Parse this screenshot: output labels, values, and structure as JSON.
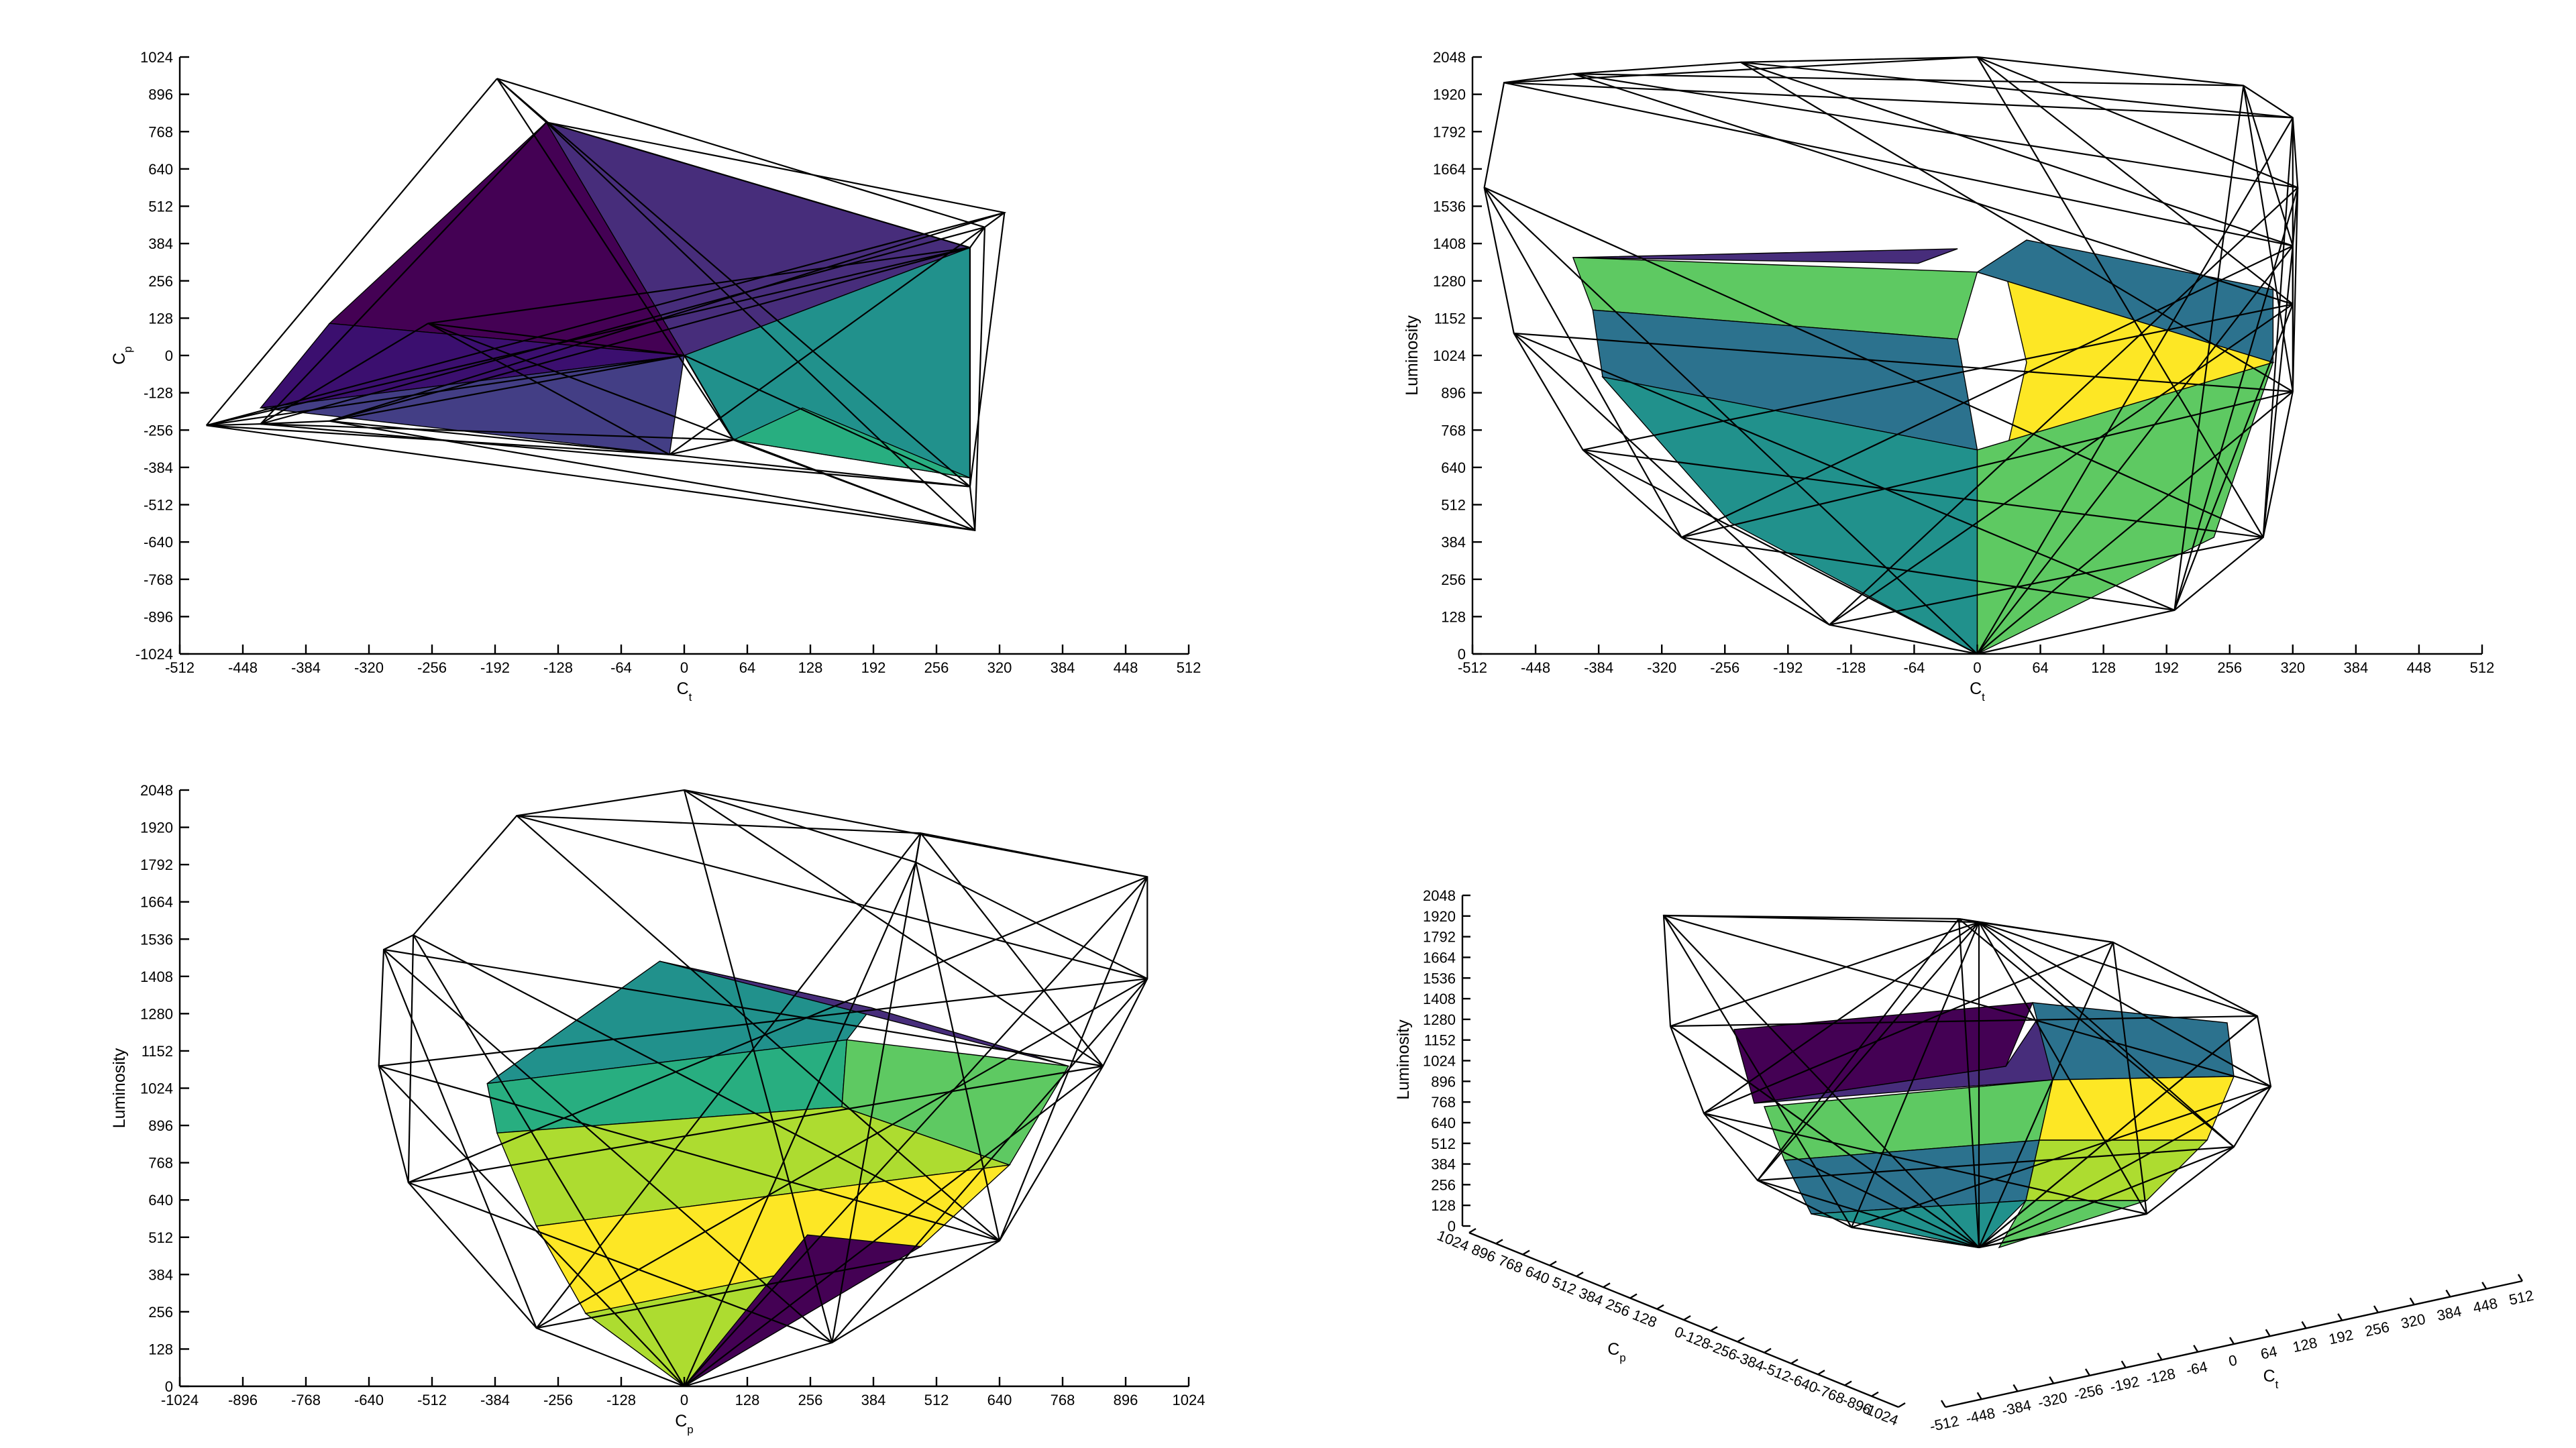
{
  "chart_data": [
    {
      "type": "3d-surface",
      "view": "top (Ct vs Cp)",
      "xlabel": "C",
      "xlabel_sub": "t",
      "ylabel": "C",
      "ylabel_sub": "p",
      "xlim": [
        -512,
        512
      ],
      "ylim": [
        -1024,
        1024
      ],
      "x_ticks": [
        -512,
        -448,
        -384,
        -320,
        -256,
        -192,
        -128,
        -64,
        0,
        64,
        128,
        192,
        256,
        320,
        384,
        448,
        512
      ],
      "y_ticks": [
        -1024,
        -896,
        -768,
        -640,
        -512,
        -384,
        -256,
        -128,
        0,
        128,
        256,
        384,
        512,
        640,
        768,
        896,
        1024
      ],
      "grid": false,
      "colormap": [
        "#440154",
        "#472d7b",
        "#3b528b",
        "#2c728e",
        "#21918c",
        "#28ae80",
        "#5ec962",
        "#addc30",
        "#fde725"
      ],
      "wireframe_vertices": [
        [
          -190,
          950
        ],
        [
          -140,
          800
        ],
        [
          325,
          490
        ],
        [
          305,
          440
        ],
        [
          290,
          370
        ],
        [
          290,
          -450
        ],
        [
          295,
          -600
        ],
        [
          -485,
          -240
        ],
        [
          -430,
          -235
        ],
        [
          -360,
          -225
        ],
        [
          -15,
          -340
        ],
        [
          -260,
          110
        ],
        [
          0,
          0
        ],
        [
          50,
          -290
        ]
      ],
      "facets": [
        {
          "color": "#440154",
          "points": [
            [
              -140,
              800
            ],
            [
              -360,
              110
            ],
            [
              0,
              0
            ]
          ]
        },
        {
          "color": "#3b0f6f",
          "points": [
            [
              -360,
              110
            ],
            [
              -430,
              -180
            ],
            [
              0,
              0
            ]
          ]
        },
        {
          "color": "#472d7b",
          "points": [
            [
              -140,
              800
            ],
            [
              290,
              370
            ],
            [
              0,
              0
            ]
          ]
        },
        {
          "color": "#433e85",
          "points": [
            [
              -430,
              -180
            ],
            [
              -15,
              -340
            ],
            [
              0,
              0
            ]
          ]
        },
        {
          "color": "#21918c",
          "points": [
            [
              0,
              0
            ],
            [
              290,
              370
            ],
            [
              290,
              -420
            ],
            [
              50,
              -290
            ]
          ]
        },
        {
          "color": "#28ae80",
          "points": [
            [
              50,
              -290
            ],
            [
              290,
              -420
            ],
            [
              120,
              -180
            ]
          ]
        }
      ]
    },
    {
      "type": "3d-surface",
      "view": "front (Ct vs Luminosity)",
      "xlabel": "C",
      "xlabel_sub": "t",
      "ylabel": "Luminosity",
      "xlim": [
        -512,
        512
      ],
      "ylim": [
        0,
        2048
      ],
      "x_ticks": [
        -512,
        -448,
        -384,
        -320,
        -256,
        -192,
        -128,
        -64,
        0,
        64,
        128,
        192,
        256,
        320,
        384,
        448,
        512
      ],
      "y_ticks": [
        0,
        128,
        256,
        384,
        512,
        640,
        768,
        896,
        1024,
        1152,
        1280,
        1408,
        1536,
        1664,
        1792,
        1920,
        2048
      ],
      "grid": false,
      "colormap": [
        "#440154",
        "#472d7b",
        "#3b528b",
        "#2c728e",
        "#21918c",
        "#28ae80",
        "#5ec962",
        "#addc30",
        "#fde725"
      ],
      "wireframe_vertices": [
        [
          -480,
          1960
        ],
        [
          -410,
          1990
        ],
        [
          -240,
          2030
        ],
        [
          0,
          2048
        ],
        [
          270,
          1950
        ],
        [
          320,
          1840
        ],
        [
          325,
          1600
        ],
        [
          320,
          1400
        ],
        [
          320,
          1200
        ],
        [
          320,
          900
        ],
        [
          290,
          400
        ],
        [
          200,
          150
        ],
        [
          0,
          0
        ],
        [
          -150,
          100
        ],
        [
          -300,
          400
        ],
        [
          -400,
          700
        ],
        [
          -470,
          1100
        ],
        [
          -500,
          1600
        ]
      ],
      "facets": [
        {
          "color": "#472d7b",
          "points": [
            [
              -410,
              1360
            ],
            [
              -20,
              1390
            ],
            [
              -60,
              1340
            ]
          ]
        },
        {
          "color": "#5ec962",
          "points": [
            [
              -410,
              1360
            ],
            [
              0,
              1310
            ],
            [
              -20,
              1080
            ],
            [
              -390,
              1180
            ]
          ]
        },
        {
          "color": "#2c728e",
          "points": [
            [
              -390,
              1180
            ],
            [
              -20,
              1080
            ],
            [
              0,
              700
            ],
            [
              -380,
              950
            ]
          ]
        },
        {
          "color": "#21918c",
          "points": [
            [
              -380,
              950
            ],
            [
              0,
              700
            ],
            [
              0,
              0
            ],
            [
              -250,
              450
            ]
          ]
        },
        {
          "color": "#fde725",
          "points": [
            [
              30,
              1290
            ],
            [
              300,
              1000
            ],
            [
              30,
              700
            ],
            [
              50,
              1000
            ]
          ]
        },
        {
          "color": "#2c728e",
          "points": [
            [
              0,
              1310
            ],
            [
              50,
              1420
            ],
            [
              300,
              1250
            ],
            [
              300,
              1000
            ]
          ]
        },
        {
          "color": "#5ec962",
          "points": [
            [
              0,
              700
            ],
            [
              300,
              1000
            ],
            [
              240,
              400
            ],
            [
              0,
              0
            ]
          ]
        }
      ]
    },
    {
      "type": "3d-surface",
      "view": "side (Cp vs Luminosity)",
      "xlabel": "C",
      "xlabel_sub": "p",
      "ylabel": "Luminosity",
      "xlim": [
        -1024,
        1024
      ],
      "ylim": [
        0,
        2048
      ],
      "x_ticks": [
        -1024,
        -896,
        -768,
        -640,
        -512,
        -384,
        -256,
        -128,
        0,
        128,
        256,
        384,
        512,
        640,
        768,
        896,
        1024
      ],
      "y_ticks": [
        0,
        128,
        256,
        384,
        512,
        640,
        768,
        896,
        1024,
        1152,
        1280,
        1408,
        1536,
        1664,
        1792,
        1920,
        2048
      ],
      "grid": false,
      "colormap": [
        "#440154",
        "#472d7b",
        "#3b528b",
        "#2c728e",
        "#21918c",
        "#28ae80",
        "#5ec962",
        "#addc30",
        "#fde725"
      ],
      "wireframe_vertices": [
        [
          -340,
          1960
        ],
        [
          0,
          2048
        ],
        [
          470,
          1800
        ],
        [
          480,
          1900
        ],
        [
          940,
          1750
        ],
        [
          940,
          1400
        ],
        [
          850,
          1100
        ],
        [
          640,
          500
        ],
        [
          300,
          150
        ],
        [
          0,
          0
        ],
        [
          -300,
          200
        ],
        [
          -560,
          700
        ],
        [
          -620,
          1100
        ],
        [
          -610,
          1500
        ],
        [
          -550,
          1550
        ]
      ],
      "facets": [
        {
          "color": "#21918c",
          "points": [
            [
              -400,
              1040
            ],
            [
              -50,
              1460
            ],
            [
              380,
              1300
            ],
            [
              330,
              1190
            ]
          ]
        },
        {
          "color": "#472d7b",
          "points": [
            [
              -50,
              1460
            ],
            [
              780,
              1100
            ],
            [
              380,
              1300
            ]
          ]
        },
        {
          "color": "#28ae80",
          "points": [
            [
              -400,
              1040
            ],
            [
              330,
              1190
            ],
            [
              320,
              960
            ],
            [
              -380,
              870
            ]
          ]
        },
        {
          "color": "#5ec962",
          "points": [
            [
              330,
              1190
            ],
            [
              780,
              1100
            ],
            [
              660,
              760
            ],
            [
              320,
              960
            ]
          ]
        },
        {
          "color": "#addc30",
          "points": [
            [
              -380,
              870
            ],
            [
              320,
              960
            ],
            [
              660,
              760
            ],
            [
              -300,
              550
            ]
          ]
        },
        {
          "color": "#fde725",
          "points": [
            [
              -300,
              550
            ],
            [
              660,
              760
            ],
            [
              480,
              480
            ],
            [
              -200,
              250
            ]
          ]
        },
        {
          "color": "#addc30",
          "points": [
            [
              -200,
              250
            ],
            [
              480,
              480
            ],
            [
              0,
              0
            ]
          ]
        },
        {
          "color": "#440154",
          "points": [
            [
              0,
              0
            ],
            [
              480,
              480
            ],
            [
              250,
              520
            ]
          ]
        }
      ]
    },
    {
      "type": "3d-surface",
      "view": "perspective (Ct, Cp, Luminosity)",
      "xlabel": "C",
      "xlabel_sub": "t",
      "ylabel": "C",
      "ylabel_sub": "p",
      "zlabel": "Luminosity",
      "xlim": [
        -512,
        512
      ],
      "ylim": [
        -1024,
        1024
      ],
      "zlim": [
        0,
        2048
      ],
      "x_ticks": [
        -512,
        -448,
        -384,
        -320,
        -256,
        -192,
        -128,
        -64,
        0,
        64,
        128,
        192,
        256,
        320,
        384,
        448,
        512
      ],
      "y_ticks": [
        1024,
        896,
        768,
        640,
        512,
        384,
        256,
        128,
        0,
        -128,
        -256,
        -384,
        -512,
        -640,
        -768,
        -896,
        -1024
      ],
      "z_ticks": [
        0,
        128,
        256,
        384,
        512,
        640,
        768,
        896,
        1024,
        1152,
        1280,
        1408,
        1536,
        1664,
        1792,
        1920,
        2048
      ],
      "grid": false,
      "colormap": [
        "#440154",
        "#472d7b",
        "#3b528b",
        "#2c728e",
        "#21918c",
        "#28ae80",
        "#5ec962",
        "#addc30",
        "#fde725"
      ]
    }
  ]
}
